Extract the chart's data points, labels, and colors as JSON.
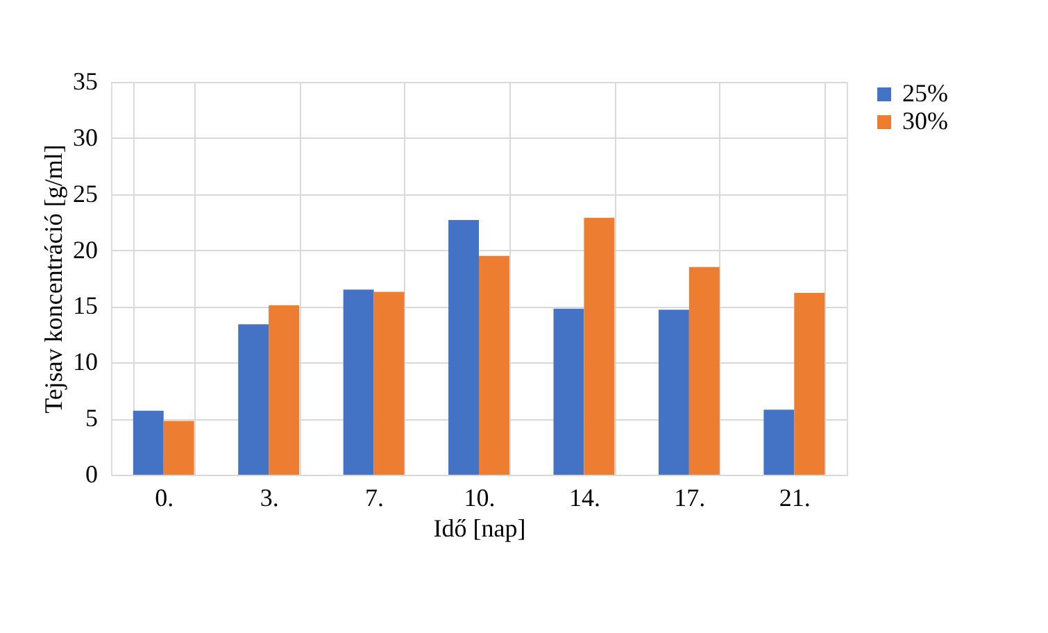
{
  "chart_data": {
    "type": "bar",
    "xlabel": "Idő [nap]",
    "ylabel": "Tejsav koncentráció [g/ml]",
    "categories": [
      "0.",
      "3.",
      "7.",
      "10.",
      "14.",
      "17.",
      "21."
    ],
    "series": [
      {
        "name": "25%",
        "color": "#4472c4",
        "values": [
          5.7,
          13.4,
          16.5,
          22.7,
          14.8,
          14.7,
          5.8
        ]
      },
      {
        "name": "30%",
        "color": "#ed7d31",
        "values": [
          4.8,
          15.1,
          16.3,
          19.5,
          22.9,
          18.5,
          16.2
        ]
      }
    ],
    "ylim": [
      0,
      35
    ],
    "yticks": [
      0,
      5,
      10,
      15,
      20,
      25,
      30,
      35
    ],
    "grid": true,
    "legend": "right"
  }
}
